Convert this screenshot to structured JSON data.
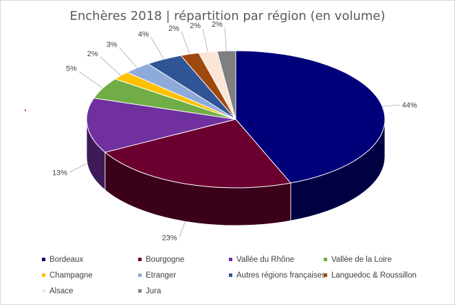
{
  "chart_data": {
    "type": "pie",
    "title": "Enchères 2018 | répartition par région (en volume)",
    "legend_position": "bottom",
    "slices": [
      {
        "name": "Bordeaux",
        "value": 44,
        "label": "44%",
        "color": "#00007a"
      },
      {
        "name": "Bourgogne",
        "value": 23,
        "label": "23%",
        "color": "#6b0030"
      },
      {
        "name": "Vallée du Rhône",
        "value": 13,
        "label": "13%",
        "color": "#7030a0"
      },
      {
        "name": "Vallée de la Loire",
        "value": 5,
        "label": "5%",
        "color": "#70ad47"
      },
      {
        "name": "Champagne",
        "value": 2,
        "label": "2%",
        "color": "#ffc000"
      },
      {
        "name": "Etranger",
        "value": 3,
        "label": "3%",
        "color": "#8eaadb"
      },
      {
        "name": "Autres régions françaises",
        "value": 4,
        "label": "4%",
        "color": "#2f5597"
      },
      {
        "name": "Languedoc & Roussillon",
        "value": 2,
        "label": "2%",
        "color": "#9e480e"
      },
      {
        "name": "Alsace",
        "value": 2,
        "label": "2%",
        "color": "#fbe5d6"
      },
      {
        "name": "Jura",
        "value": 2,
        "label": "2%",
        "color": "#7f7f7f"
      }
    ]
  }
}
